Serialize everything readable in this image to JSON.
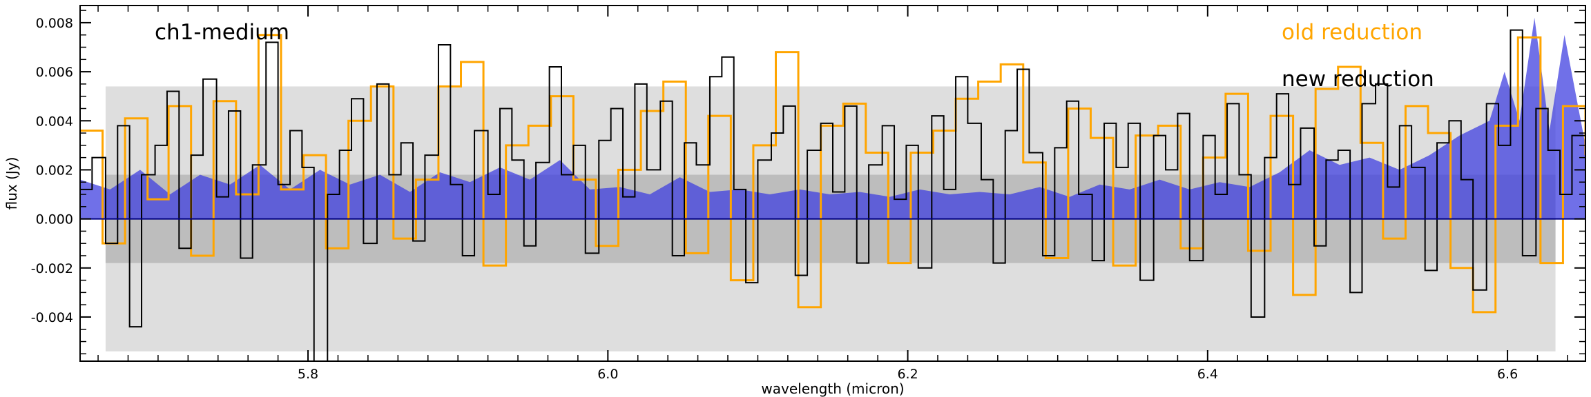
{
  "chart_data": {
    "type": "line",
    "title": "",
    "xlabel": "wavelength (micron)",
    "ylabel": "flux (Jy)",
    "xlim": [
      5.648,
      6.652
    ],
    "ylim": [
      -0.0058,
      0.0087
    ],
    "x_ticks": [
      5.8,
      6.0,
      6.2,
      6.4,
      6.6
    ],
    "x_tick_labels": [
      "5.8",
      "6.0",
      "6.2",
      "6.4",
      "6.6"
    ],
    "y_ticks": [
      -0.004,
      -0.002,
      0.0,
      0.002,
      0.004,
      0.006,
      0.008
    ],
    "y_tick_labels": [
      "-0.004",
      "-0.002",
      "0.000",
      "0.002",
      "0.004",
      "0.006",
      "0.008"
    ],
    "annotations": {
      "channel": "ch1-medium",
      "old_label": "old reduction",
      "new_label": "new reduction"
    },
    "bands": [
      {
        "x": [
          5.665,
          6.632
        ],
        "y": [
          -0.0054,
          0.0054
        ],
        "color": "#dedede"
      },
      {
        "x": [
          5.665,
          6.632
        ],
        "y": [
          -0.0018,
          0.0018
        ],
        "color": "#bdbdbd"
      }
    ],
    "colors": {
      "old": "#ffa500",
      "new": "#000000",
      "noise": "#4040e0",
      "zero": "#000080"
    },
    "series": [
      {
        "name": "old reduction",
        "style": "step",
        "x": [
          5.648,
          5.663,
          5.678,
          5.693,
          5.707,
          5.722,
          5.737,
          5.752,
          5.767,
          5.782,
          5.797,
          5.812,
          5.827,
          5.842,
          5.857,
          5.872,
          5.887,
          5.902,
          5.917,
          5.932,
          5.947,
          5.962,
          5.977,
          5.992,
          6.007,
          6.022,
          6.037,
          6.052,
          6.067,
          6.082,
          6.097,
          6.112,
          6.127,
          6.142,
          6.157,
          6.172,
          6.187,
          6.202,
          6.217,
          6.232,
          6.247,
          6.262,
          6.277,
          6.292,
          6.307,
          6.322,
          6.337,
          6.352,
          6.367,
          6.382,
          6.397,
          6.412,
          6.427,
          6.442,
          6.457,
          6.472,
          6.487,
          6.502,
          6.517,
          6.532,
          6.547,
          6.562,
          6.577,
          6.592,
          6.607,
          6.622,
          6.637,
          6.652
        ],
        "y": [
          0.0036,
          -0.001,
          0.0041,
          0.0008,
          0.0046,
          -0.0015,
          0.0048,
          0.001,
          0.0075,
          0.0012,
          0.0026,
          -0.0012,
          0.004,
          0.0054,
          -0.0008,
          0.0016,
          0.0054,
          0.0064,
          -0.0019,
          0.003,
          0.0038,
          0.005,
          0.0016,
          -0.0011,
          0.002,
          0.0044,
          0.0056,
          -0.0014,
          0.0042,
          -0.0025,
          0.003,
          0.0068,
          -0.0036,
          0.0038,
          0.0047,
          0.0027,
          -0.0018,
          0.0027,
          0.0036,
          0.0049,
          0.0056,
          0.0063,
          0.0023,
          -0.0016,
          0.0045,
          0.0033,
          -0.0019,
          0.0034,
          0.0038,
          -0.0012,
          0.0025,
          0.0051,
          -0.0013,
          0.0042,
          -0.0031,
          0.0053,
          0.0062,
          0.0031,
          -0.0008,
          0.0046,
          0.0035,
          -0.002,
          -0.0038,
          0.0038,
          0.0074,
          -0.0018,
          0.0046,
          0.0026
        ]
      },
      {
        "name": "new reduction",
        "style": "step",
        "x": [
          5.648,
          5.656,
          5.665,
          5.673,
          5.681,
          5.689,
          5.698,
          5.706,
          5.714,
          5.722,
          5.73,
          5.739,
          5.747,
          5.755,
          5.763,
          5.772,
          5.78,
          5.788,
          5.796,
          5.804,
          5.813,
          5.821,
          5.829,
          5.837,
          5.846,
          5.854,
          5.862,
          5.87,
          5.878,
          5.887,
          5.895,
          5.903,
          5.911,
          5.92,
          5.928,
          5.936,
          5.944,
          5.952,
          5.961,
          5.969,
          5.977,
          5.985,
          5.994,
          6.002,
          6.01,
          6.018,
          6.026,
          6.035,
          6.043,
          6.051,
          6.059,
          6.068,
          6.076,
          6.084,
          6.092,
          6.1,
          6.109,
          6.117,
          6.125,
          6.133,
          6.142,
          6.15,
          6.158,
          6.166,
          6.174,
          6.183,
          6.191,
          6.199,
          6.207,
          6.216,
          6.224,
          6.232,
          6.24,
          6.249,
          6.257,
          6.265,
          6.273,
          6.281,
          6.29,
          6.298,
          6.306,
          6.314,
          6.323,
          6.331,
          6.339,
          6.347,
          6.355,
          6.364,
          6.372,
          6.38,
          6.388,
          6.397,
          6.405,
          6.413,
          6.421,
          6.429,
          6.438,
          6.446,
          6.454,
          6.462,
          6.471,
          6.479,
          6.487,
          6.495,
          6.503,
          6.512,
          6.52,
          6.528,
          6.536,
          6.545,
          6.553,
          6.561,
          6.569,
          6.577,
          6.586,
          6.594,
          6.602,
          6.61,
          6.619,
          6.627,
          6.635,
          6.643,
          6.652
        ],
        "y": [
          0.0012,
          0.0025,
          -0.001,
          0.0038,
          -0.0044,
          0.0018,
          0.003,
          0.0052,
          -0.0012,
          0.0026,
          0.0057,
          0.0009,
          0.0044,
          -0.0016,
          0.0022,
          0.0072,
          0.0014,
          0.0036,
          0.0021,
          -0.0058,
          0.001,
          0.0028,
          0.0049,
          -0.001,
          0.0055,
          0.0018,
          0.0031,
          -0.0009,
          0.0026,
          0.0071,
          0.0014,
          -0.0015,
          0.0036,
          0.001,
          0.0045,
          0.0024,
          -0.0011,
          0.0023,
          0.0062,
          0.0018,
          0.003,
          -0.0014,
          0.0032,
          0.0045,
          0.0009,
          0.0055,
          0.002,
          0.0048,
          -0.0015,
          0.0031,
          0.0022,
          0.0058,
          0.0066,
          0.0012,
          -0.0026,
          0.0024,
          0.0035,
          0.0046,
          -0.0023,
          0.0028,
          0.0039,
          0.0011,
          0.0046,
          -0.0018,
          0.0022,
          0.0038,
          0.0008,
          0.003,
          -0.002,
          0.0042,
          0.0012,
          0.0058,
          0.0039,
          0.0016,
          -0.0018,
          0.0036,
          0.0061,
          0.0027,
          -0.0015,
          0.0029,
          0.0048,
          0.001,
          -0.0017,
          0.0039,
          0.0021,
          0.0039,
          -0.0025,
          0.0034,
          0.002,
          0.0043,
          -0.0017,
          0.0034,
          0.001,
          0.0047,
          0.0018,
          -0.004,
          0.0025,
          0.0051,
          0.0014,
          0.0037,
          -0.0011,
          0.0024,
          0.0028,
          -0.003,
          0.0047,
          0.0055,
          0.0013,
          0.0038,
          0.0021,
          -0.0021,
          0.0031,
          0.004,
          0.0016,
          -0.0029,
          0.0047,
          0.003,
          0.0077,
          -0.0015,
          0.0045,
          0.0028,
          0.001,
          0.0034,
          0.0018
        ]
      },
      {
        "name": "noise",
        "style": "fill",
        "x": [
          5.648,
          5.668,
          5.688,
          5.708,
          5.728,
          5.748,
          5.768,
          5.788,
          5.808,
          5.828,
          5.848,
          5.868,
          5.888,
          5.908,
          5.928,
          5.948,
          5.968,
          5.988,
          6.008,
          6.028,
          6.048,
          6.068,
          6.088,
          6.108,
          6.128,
          6.148,
          6.168,
          6.188,
          6.208,
          6.228,
          6.248,
          6.268,
          6.288,
          6.308,
          6.328,
          6.348,
          6.368,
          6.388,
          6.408,
          6.428,
          6.448,
          6.468,
          6.488,
          6.508,
          6.528,
          6.548,
          6.568,
          6.588,
          6.598,
          6.608,
          6.618,
          6.628,
          6.638,
          6.652
        ],
        "y": [
          0.0016,
          0.0012,
          0.002,
          0.001,
          0.0018,
          0.0014,
          0.0022,
          0.0012,
          0.002,
          0.0014,
          0.0018,
          0.0011,
          0.0019,
          0.0015,
          0.0021,
          0.0016,
          0.0024,
          0.0012,
          0.0013,
          0.001,
          0.0017,
          0.0011,
          0.0012,
          0.001,
          0.0012,
          0.001,
          0.0011,
          0.0009,
          0.0012,
          0.001,
          0.0011,
          0.001,
          0.0013,
          0.0009,
          0.0014,
          0.0012,
          0.0016,
          0.0012,
          0.0015,
          0.0013,
          0.0019,
          0.0028,
          0.0022,
          0.0025,
          0.002,
          0.0026,
          0.0034,
          0.004,
          0.006,
          0.004,
          0.0082,
          0.0036,
          0.0075,
          0.003
        ]
      }
    ]
  }
}
